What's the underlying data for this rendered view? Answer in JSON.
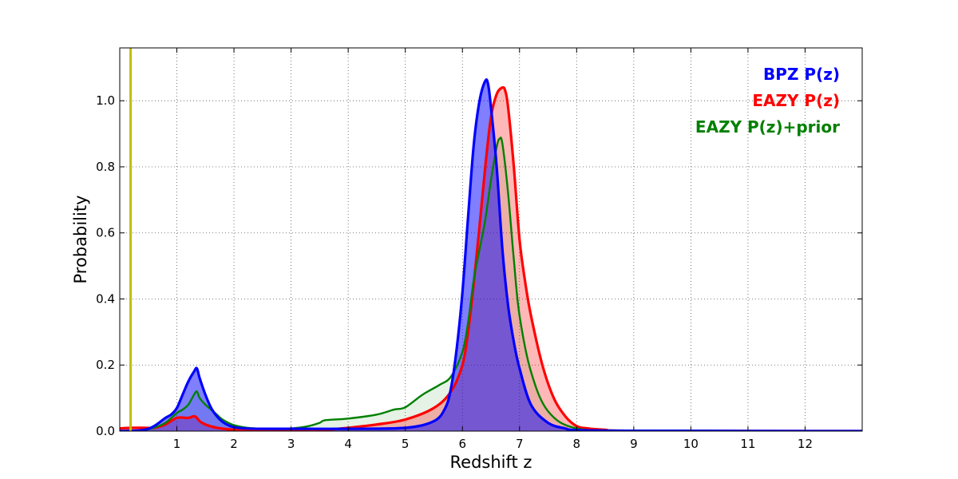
{
  "chart_data": {
    "type": "area",
    "title": "",
    "xlabel": "Redshift z",
    "ylabel": "Probability",
    "xlim": [
      0,
      13
    ],
    "ylim": [
      0,
      1.16
    ],
    "grid": true,
    "legend_position": "top-right",
    "x_ticks": [
      1,
      2,
      3,
      4,
      5,
      6,
      7,
      8,
      9,
      10,
      11,
      12
    ],
    "y_ticks": [
      0.0,
      0.2,
      0.4,
      0.6,
      0.8,
      1.0
    ],
    "x_tick_labels": [
      "1",
      "2",
      "3",
      "4",
      "5",
      "6",
      "7",
      "8",
      "9",
      "10",
      "11",
      "12"
    ],
    "y_tick_labels": [
      "0.0",
      "0.2",
      "0.4",
      "0.6",
      "0.8",
      "1.0"
    ],
    "reference_line": {
      "x": 0.19,
      "color": "#bfbf00"
    },
    "series": [
      {
        "name": "BPZ P(z)",
        "color": "#0000ff",
        "fill": "#0000ff",
        "fill_opacity": 0.5,
        "x": [
          0,
          0.4,
          0.6,
          0.8,
          0.9,
          1.0,
          1.1,
          1.2,
          1.3,
          1.35,
          1.4,
          1.5,
          1.6,
          1.7,
          1.8,
          1.9,
          2.0,
          2.2,
          2.5,
          3.0,
          4.0,
          5.0,
          5.5,
          5.7,
          5.8,
          5.9,
          6.0,
          6.1,
          6.2,
          6.3,
          6.4,
          6.45,
          6.5,
          6.6,
          6.7,
          6.8,
          6.9,
          7.0,
          7.2,
          7.5,
          7.8,
          8.0,
          9.0,
          13.0
        ],
        "y": [
          0,
          0.003,
          0.015,
          0.04,
          0.05,
          0.07,
          0.11,
          0.15,
          0.18,
          0.19,
          0.16,
          0.11,
          0.07,
          0.045,
          0.028,
          0.018,
          0.012,
          0.008,
          0.007,
          0.007,
          0.007,
          0.01,
          0.03,
          0.07,
          0.13,
          0.25,
          0.42,
          0.65,
          0.87,
          1.0,
          1.06,
          1.05,
          0.98,
          0.8,
          0.55,
          0.38,
          0.27,
          0.19,
          0.08,
          0.025,
          0.008,
          0.003,
          0.001,
          0.0
        ]
      },
      {
        "name": "EAZY P(z)",
        "color": "#ff0000",
        "fill": "#ff0000",
        "fill_opacity": 0.28,
        "x": [
          0,
          0.2,
          0.4,
          0.6,
          0.8,
          1.0,
          1.2,
          1.3,
          1.35,
          1.4,
          1.5,
          1.7,
          2.0,
          2.5,
          3.0,
          3.5,
          4.0,
          4.5,
          5.0,
          5.5,
          5.8,
          6.0,
          6.1,
          6.2,
          6.3,
          6.4,
          6.5,
          6.6,
          6.7,
          6.75,
          6.8,
          6.9,
          7.0,
          7.1,
          7.2,
          7.4,
          7.6,
          7.8,
          8.0,
          8.2,
          8.5,
          9.0,
          13.0
        ],
        "y": [
          0.008,
          0.01,
          0.01,
          0.01,
          0.02,
          0.04,
          0.04,
          0.045,
          0.04,
          0.03,
          0.02,
          0.01,
          0.004,
          0.002,
          0.002,
          0.003,
          0.01,
          0.02,
          0.035,
          0.07,
          0.12,
          0.2,
          0.3,
          0.45,
          0.62,
          0.8,
          0.95,
          1.02,
          1.04,
          1.03,
          0.98,
          0.8,
          0.58,
          0.45,
          0.35,
          0.2,
          0.1,
          0.045,
          0.015,
          0.008,
          0.004,
          0.001,
          0.0
        ]
      },
      {
        "name": "EAZY P(z)+prior",
        "color": "#008000",
        "fill": "#008000",
        "fill_opacity": 0.1,
        "x": [
          0,
          0.4,
          0.6,
          0.8,
          1.0,
          1.1,
          1.2,
          1.3,
          1.35,
          1.4,
          1.5,
          1.6,
          1.7,
          1.8,
          2.0,
          2.3,
          2.7,
          3.0,
          3.3,
          3.5,
          3.6,
          4.0,
          4.5,
          4.8,
          5.0,
          5.3,
          5.6,
          5.8,
          6.0,
          6.1,
          6.2,
          6.3,
          6.4,
          6.5,
          6.6,
          6.65,
          6.7,
          6.8,
          6.9,
          7.0,
          7.2,
          7.5,
          8.0,
          9.0,
          13.0
        ],
        "y": [
          0,
          0.003,
          0.01,
          0.025,
          0.055,
          0.065,
          0.08,
          0.11,
          0.12,
          0.1,
          0.08,
          0.065,
          0.05,
          0.035,
          0.018,
          0.009,
          0.008,
          0.008,
          0.015,
          0.025,
          0.033,
          0.038,
          0.05,
          0.065,
          0.072,
          0.11,
          0.14,
          0.165,
          0.24,
          0.33,
          0.46,
          0.55,
          0.64,
          0.76,
          0.86,
          0.885,
          0.87,
          0.72,
          0.52,
          0.35,
          0.18,
          0.06,
          0.008,
          0.002,
          0.0
        ]
      }
    ]
  }
}
